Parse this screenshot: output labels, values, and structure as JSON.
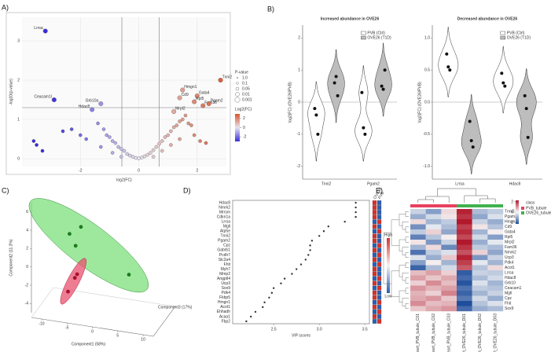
{
  "panels": [
    "A)",
    "B)",
    "C)",
    "D)",
    "E)"
  ],
  "chart_data": [
    {
      "type": "scatter",
      "xlabel": "log2(FC)",
      "ylabel": "-log10(p-value)",
      "xlim": [
        -4,
        3
      ],
      "ylim": [
        -0.2,
        3.6
      ],
      "xticks": [
        -2,
        0,
        2
      ],
      "yticks": [
        0,
        1,
        2,
        3
      ],
      "grid": true,
      "thresholds": {
        "x": [
          -0.58,
          0.7
        ],
        "y": 1.3
      },
      "colorscale": [
        "#3a2fd8",
        "#e6e2ee",
        "#d9562e"
      ],
      "clim": [
        -3,
        3
      ],
      "x": [
        -1.4,
        -1.2,
        -1.1,
        -1.0,
        -0.9,
        -0.8,
        -0.7,
        -0.6,
        -0.5,
        -0.4,
        -0.3,
        -0.2,
        -0.1,
        0,
        0.1,
        0.2,
        0.3,
        0.4,
        0.5,
        0.6,
        0.7,
        0.8,
        0.9,
        1.0,
        1.1,
        1.2,
        1.3,
        1.4,
        1.5,
        1.6,
        1.7,
        1.8,
        -1.3,
        -0.9,
        -0.6,
        0.5,
        0.8,
        1.1,
        1.4,
        1.9,
        2.1,
        2.3,
        -1.8,
        -2.0,
        -3.6,
        -3.5,
        -3.3,
        -2.6,
        -2.3
      ],
      "y": [
        0.9,
        0.75,
        0.6,
        0.55,
        0.45,
        0.4,
        0.3,
        0.25,
        0.2,
        0.12,
        0.08,
        0.05,
        0.02,
        0.01,
        0.03,
        0.06,
        0.1,
        0.15,
        0.22,
        0.3,
        0.38,
        0.45,
        0.55,
        0.6,
        0.7,
        0.8,
        0.85,
        0.95,
        1.0,
        1.1,
        0.9,
        0.85,
        0.3,
        0.15,
        0.05,
        0.05,
        0.2,
        0.35,
        0.5,
        0.6,
        0.45,
        0.4,
        0.5,
        0.6,
        0.45,
        0.35,
        0.2,
        0.7,
        0.75
      ],
      "labeled": {
        "names": [
          "Lrrsa",
          "Ceacam1l",
          "Grb10a",
          "Hdac8",
          "Tnni2",
          "Hmgn1",
          "Cd9",
          "Gata4",
          "Rpl5",
          "Fam36",
          "Pgam2",
          "Mrpl2"
        ],
        "x": [
          -3.2,
          -2.9,
          -1.3,
          -1.6,
          2.8,
          1.5,
          1.4,
          2.0,
          1.9,
          2.2,
          2.4,
          1.2
        ],
        "y": [
          3.25,
          1.5,
          1.4,
          1.25,
          2.0,
          1.75,
          1.55,
          1.6,
          1.45,
          1.35,
          1.4,
          1.2
        ]
      },
      "size_legend": {
        "title": "P-value",
        "labels": [
          "1.0",
          "0.1",
          "0.05",
          "0.01",
          "0.001"
        ]
      },
      "color_legend": {
        "title": "Log2(FC)",
        "ticks": [
          2,
          0,
          -2
        ]
      }
    },
    {
      "type": "violin",
      "title": "Increased abundance in OVE26",
      "ylabel": "log2(FC) (OVE26/PVB)",
      "categories": [
        "Tnni2",
        "Pgam2"
      ],
      "ylim": [
        -2.4,
        2.4
      ],
      "yticks": [
        -2,
        -1,
        0,
        1,
        2
      ],
      "reference_line": 0,
      "series": [
        {
          "name": "PVB (Ctrl)",
          "color": "#ffffff",
          "values": [
            [
              -0.2,
              -0.4,
              -1.0
            ],
            [
              0.3,
              -0.8,
              -1.0
            ]
          ]
        },
        {
          "name": "OVE26 (T1D)",
          "color": "#bdbdbd",
          "values": [
            [
              0.6,
              0.8,
              0.2
            ],
            [
              0.5,
              0.4,
              1.0
            ]
          ]
        }
      ]
    },
    {
      "type": "violin",
      "title": "Decreased abundance in OVE26",
      "ylabel": "log2(FC) (OVE26/PVB)",
      "categories": [
        "Lrrsa",
        "Hdac8"
      ],
      "ylim": [
        -1.2,
        1.2
      ],
      "yticks": [
        {
          "value": -1,
          "label": "-1.0"
        },
        -0.5,
        {
          "value": 0,
          "label": "0.0"
        },
        0.5,
        {
          "value": 1,
          "label": "1.0"
        }
      ],
      "reference_line": 0,
      "series": [
        {
          "name": "PVB (Ctrl)",
          "color": "#ffffff",
          "values": [
            [
              0.75,
              0.55,
              0.5
            ],
            [
              0.45,
              0.3,
              0.25
            ]
          ]
        },
        {
          "name": "OVE26 (T1D)",
          "color": "#bdbdbd",
          "values": [
            [
              -0.3,
              -0.6,
              -0.7
            ],
            [
              0.1,
              -0.1,
              -0.55
            ]
          ]
        }
      ]
    },
    {
      "type": "scatter3d",
      "xlabel": "Component1 (58%)",
      "ylabel": "Component2 (11.3%)",
      "zlabel": "Component3 (17%)",
      "xlim": [
        -12,
        12
      ],
      "ylim": [
        -5,
        7
      ],
      "xticks": [
        -10,
        -5,
        0,
        5,
        10
      ],
      "yticks": [
        -4,
        -2,
        0,
        2,
        4,
        6
      ],
      "series": [
        {
          "color": "#7ee07e",
          "point_color": "#1e7a1e",
          "x": [
            -2.25,
            -4.5,
            -3.3,
            7.2
          ],
          "y": [
            4.36,
            3.6,
            2.3,
            -0.85
          ]
        },
        {
          "color": "#e8516f",
          "point_color": "#a8102c",
          "x": [
            -3,
            -3.45,
            -4.8
          ],
          "y": [
            -0.8,
            -1.2,
            -2.7
          ]
        }
      ]
    },
    {
      "type": "dot",
      "xlabel": "VIP scores",
      "xlim": [
        2.05,
        3.55
      ],
      "xticks": [
        2.5,
        {
          "value": 3,
          "label": "3.0"
        },
        3.5
      ],
      "categories": [
        "Hdac8",
        "Nmrk2",
        "Mrrsm",
        "Cdkn1a",
        "Lrrsa",
        "Mgll",
        "Atp5e",
        "Tnni2",
        "Pgam2",
        "Cpz",
        "Gabrb1",
        "Pcdh7",
        "Slc2a4",
        "Fhit",
        "Myh7",
        "Mmp2",
        "Angptl4",
        "Ucp3",
        "Sox9",
        "Pdk4",
        "Fkbp5",
        "Hmgn1",
        "Acot1",
        "Ehhadh",
        "Acaa1",
        "Fbp2"
      ],
      "values": [
        3.4,
        3.4,
        3.4,
        3.4,
        3.28,
        3.1,
        3.05,
        3.0,
        2.92,
        2.9,
        2.9,
        2.88,
        2.85,
        2.8,
        2.75,
        2.7,
        2.62,
        2.58,
        2.5,
        2.48,
        2.45,
        2.4,
        2.38,
        2.3,
        2.25,
        2.2
      ],
      "levels": [
        {
          "name": "OVE26",
          "values": [
            1,
            1,
            1,
            1,
            -1,
            1,
            -1,
            1,
            1,
            -1,
            1,
            -1,
            1,
            -1,
            1,
            1,
            -1,
            1,
            -1,
            1,
            1,
            -1,
            1,
            -1,
            1,
            -1
          ]
        },
        {
          "name": "PVB",
          "values": [
            -1,
            -1,
            -1,
            -1,
            1,
            -1,
            1,
            -1,
            -1,
            1,
            -1,
            1,
            -1,
            1,
            -1,
            -1,
            1,
            -1,
            1,
            -1,
            -1,
            1,
            -1,
            1,
            -1,
            1
          ]
        }
      ],
      "level_colors": [
        "#2b5fb4",
        "#f4f4f4",
        "#d7312b"
      ],
      "level_lim": [
        -1,
        1
      ],
      "level_legend": [
        "High",
        "Low"
      ]
    },
    {
      "type": "heatmap",
      "colorscale": [
        "#1f4e9c",
        "#f7f7f7",
        "#b2182b"
      ],
      "clim": [
        -2.3,
        2.3
      ],
      "cticks": [
        2,
        0,
        -2
      ],
      "legend_title": "class",
      "classes": [
        {
          "name": "PVB_tubule",
          "color": "#e8415f",
          "span": 3
        },
        {
          "name": "OVE26_tubule",
          "color": "#3fb24f",
          "span": 3
        }
      ],
      "columns": [
        "Heart_PVB_tubule_C01",
        "Heart_PVB_tubule_C02",
        "Heart_PVB_tubule_C03",
        "Heart_OVE26_tubule_D01",
        "Heart_OVE26_tubule_D02",
        "Heart_OVE26_tubule_D03"
      ],
      "rows": [
        "Tnni2",
        "Pgam2",
        "Hmgn1",
        "Cd9",
        "Gata4",
        "Rpl5",
        "Mrpl2",
        "Fam36",
        "Nmrk2",
        "Ucp3",
        "Pdk4",
        "Acot1",
        "Lrrsa",
        "Hdac8",
        "Grb10",
        "Ceacam1",
        "Mgll",
        "Cpz",
        "Fhit",
        "Sox9"
      ],
      "values": [
        [
          -0.5,
          -1.2,
          0.3,
          2.2,
          -0.8,
          -0.6
        ],
        [
          -1.0,
          -0.4,
          0.2,
          2.0,
          -1.1,
          -0.3
        ],
        [
          0.3,
          -0.9,
          -0.6,
          2.3,
          -0.5,
          -1.0
        ],
        [
          -1.4,
          -0.2,
          -0.8,
          1.9,
          0.2,
          -0.7
        ],
        [
          -0.6,
          0.4,
          -1.1,
          2.1,
          -0.9,
          0.1
        ],
        [
          -1.6,
          -0.7,
          0.1,
          1.8,
          -0.4,
          -1.2
        ],
        [
          0.2,
          -1.3,
          -0.5,
          2.4,
          -1.0,
          -0.2
        ],
        [
          -0.9,
          0.3,
          -1.5,
          2.0,
          -0.6,
          -0.8
        ],
        [
          -1.8,
          -0.6,
          -0.3,
          1.7,
          0.4,
          -1.1
        ],
        [
          -0.3,
          -1.0,
          0.5,
          2.2,
          -1.3,
          -0.5
        ],
        [
          -1.2,
          0.1,
          -0.9,
          1.9,
          -0.2,
          -0.9
        ],
        [
          -2.0,
          -0.8,
          -0.4,
          1.6,
          -0.7,
          0.3
        ],
        [
          0.6,
          0.9,
          0.4,
          -2.1,
          -0.5,
          -0.6
        ],
        [
          0.9,
          0.5,
          0.8,
          -1.9,
          -0.8,
          -0.4
        ],
        [
          0.4,
          1.1,
          0.6,
          -2.2,
          -0.3,
          -0.9
        ],
        [
          1.0,
          0.7,
          0.9,
          -1.8,
          -0.6,
          -0.7
        ],
        [
          0.7,
          0.4,
          1.2,
          -2.0,
          -0.9,
          -0.5
        ],
        [
          0.8,
          1.0,
          0.5,
          -1.7,
          -0.4,
          -1.0
        ],
        [
          1.1,
          0.6,
          0.7,
          -2.3,
          -0.7,
          -0.3
        ],
        [
          0.5,
          0.8,
          1.0,
          -1.9,
          -1.0,
          -0.8
        ]
      ]
    }
  ]
}
